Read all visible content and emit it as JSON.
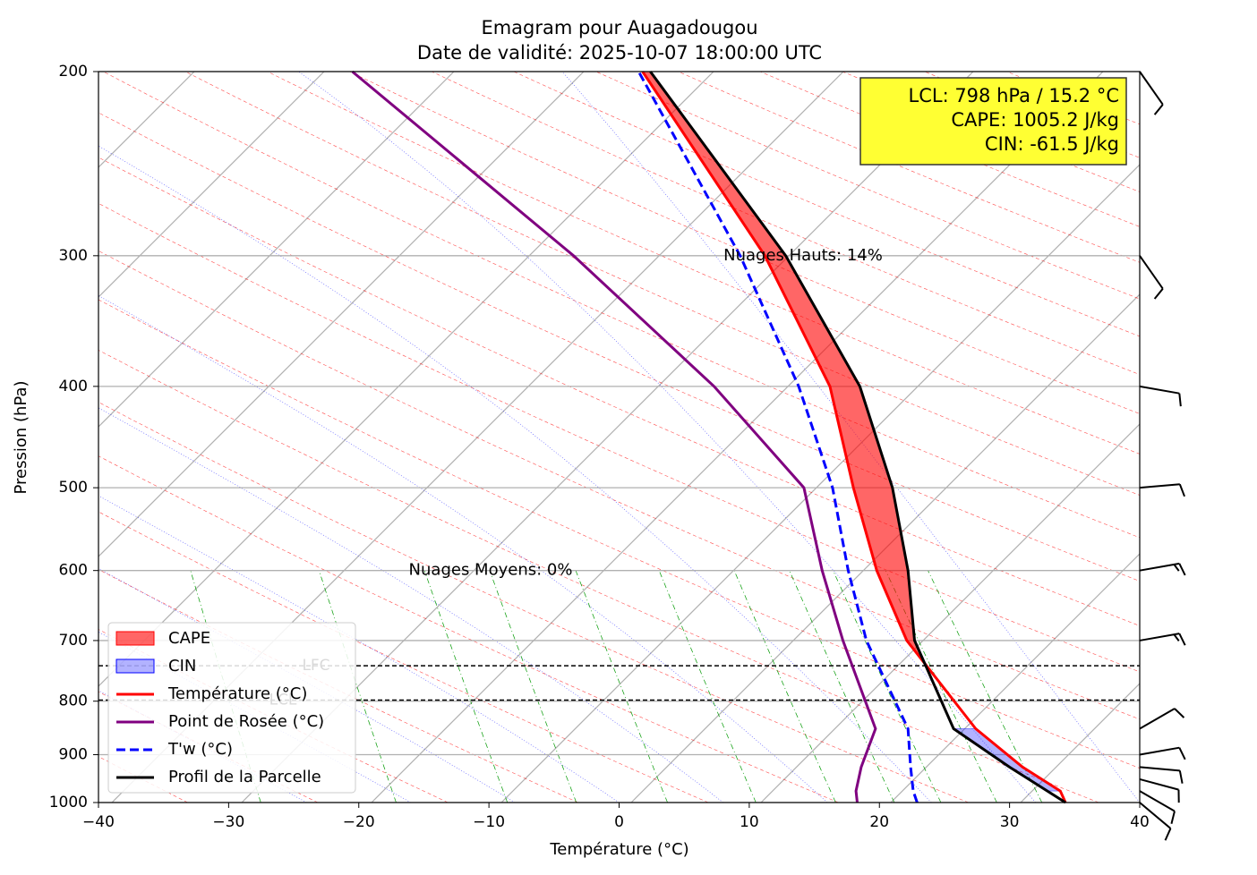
{
  "chart_data": {
    "type": "line",
    "title": "Emagram pour Auagadougou",
    "subtitle": "Date de validité: 2025-10-07 18:00:00 UTC",
    "x_label": "Température (°C)",
    "y_label": "Pression (hPa)",
    "xlim": [
      -40,
      40
    ],
    "xticks": [
      {
        "value": -40,
        "label": "−40"
      },
      {
        "value": -30,
        "label": "−30"
      },
      {
        "value": -20,
        "label": "−20"
      },
      {
        "value": -10,
        "label": "−10"
      },
      0,
      10,
      20,
      30,
      40
    ],
    "ylim": [
      1000,
      200
    ],
    "yticks": [
      200,
      300,
      400,
      500,
      600,
      700,
      800,
      900,
      1000
    ],
    "log_y": true,
    "grid": true,
    "y": [
      1000,
      975,
      925,
      850,
      700,
      600,
      500,
      400,
      300,
      200
    ],
    "series": [
      {
        "name": "Température (°C)",
        "color": "#ff0000",
        "dash": false,
        "values": [
          34.3,
          33.9,
          31.0,
          27.4,
          22.1,
          19.8,
          18.0,
          16.2,
          11.2,
          1.8
        ]
      },
      {
        "name": "Point de Rosée (°C)",
        "color": "#800080",
        "dash": false,
        "values": [
          18.3,
          18.2,
          18.6,
          19.7,
          17.2,
          15.6,
          14.2,
          7.3,
          -3.5,
          -20.5
        ]
      },
      {
        "name": "T'w (°C)",
        "color": "#0000ff",
        "dash": true,
        "values": [
          22.9,
          22.6,
          22.4,
          22.2,
          19.0,
          17.6,
          16.4,
          13.8,
          9.3,
          1.5
        ]
      },
      {
        "name": "Profil de la Parcelle",
        "color": "#000000",
        "dash": false,
        "values": [
          34.3,
          32.9,
          30.0,
          25.7,
          22.7,
          22.2,
          21.0,
          18.5,
          12.8,
          2.4
        ]
      }
    ],
    "fills": [
      {
        "name": "CAPE",
        "color": "#ff0000",
        "layer": [
          740,
          200
        ]
      },
      {
        "name": "CIN",
        "color": "#0000ff",
        "layer": [
          975,
          850
        ]
      }
    ],
    "levels": [
      {
        "name": "LFC",
        "pressure": 740
      },
      {
        "name": "LCL",
        "pressure": 798
      }
    ],
    "info_box": [
      "LCL: 798 hPa / 15.2 °C",
      "CAPE: 1005.2 J/kg",
      "CIN: -61.5 J/kg"
    ],
    "annotations": [
      "Nuages Hauts: 14%",
      "Nuages Moyens: 0%"
    ],
    "wind": {
      "pressure": [
        200,
        300,
        400,
        500,
        600,
        700,
        850,
        900,
        925,
        950,
        975,
        1000
      ],
      "direction": [
        145,
        145,
        100,
        85,
        80,
        80,
        60,
        80,
        95,
        105,
        120,
        130
      ],
      "speed": [
        10,
        10,
        10,
        10,
        15,
        15,
        10,
        10,
        10,
        10,
        10,
        10
      ]
    },
    "legend": "lower left"
  }
}
